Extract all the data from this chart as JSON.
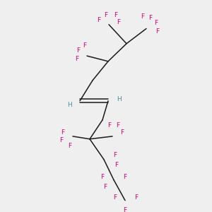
{
  "bg_color": "#efefef",
  "bond_color": "#1a1a1a",
  "F_color": "#cc0077",
  "H_color": "#4a9090",
  "font_size_F": 6.5,
  "font_size_H": 6.5,
  "line_width": 1.1,
  "figsize": [
    3.0,
    3.0
  ],
  "dpi": 100,
  "xlim": [
    0,
    300
  ],
  "ylim": [
    0,
    300
  ]
}
